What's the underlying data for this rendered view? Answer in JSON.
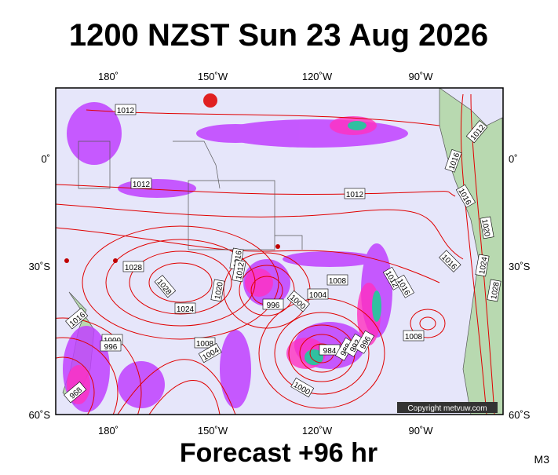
{
  "header": {
    "title": "1200 NZST Sun 23 Aug 2026"
  },
  "map": {
    "lon_labels": [
      "180˚",
      "150˚W",
      "120˚W",
      "90˚W"
    ],
    "lat_labels": [
      "0˚",
      "30˚S",
      "60˚S"
    ],
    "contour_labels": [
      "1012",
      "1012",
      "1012",
      "1016",
      "1012",
      "1016",
      "1020",
      "1016",
      "1024",
      "1028",
      "1028",
      "1028",
      "1024",
      "1020",
      "1016",
      "1012",
      "996",
      "1000",
      "1004",
      "1008",
      "1012",
      "1016",
      "1008",
      "1016",
      "1000",
      "996",
      "1008",
      "1004",
      "984",
      "988",
      "992",
      "996",
      "1000",
      "968"
    ],
    "copyright": "Copyright metvuw.com"
  },
  "footer": {
    "text": "Forecast +96 hr",
    "code": "M3"
  }
}
